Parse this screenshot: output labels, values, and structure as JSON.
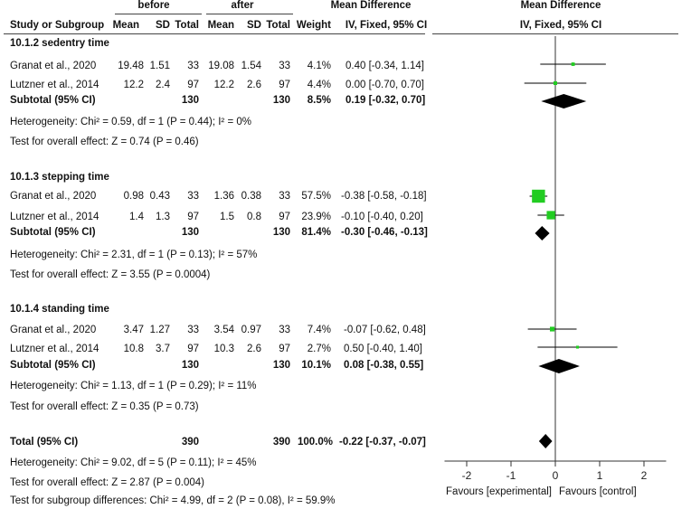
{
  "header": {
    "group_before": "before",
    "group_after": "after",
    "md_title_left": "Mean Difference",
    "md_sub_left": "IV, Fixed, 95% CI",
    "md_title_right": "Mean Difference",
    "md_sub_right": "IV, Fixed, 95% CI",
    "columns": {
      "study": "Study or Subgroup",
      "mean1": "Mean",
      "sd1": "SD",
      "total1": "Total",
      "mean2": "Mean",
      "sd2": "SD",
      "total2": "Total",
      "weight": "Weight"
    }
  },
  "subgroups": [
    {
      "title": "10.1.2 sedentry time",
      "studies": [
        {
          "name": "Granat et al., 2020",
          "mean1": "19.48",
          "sd1": "1.51",
          "total1": "33",
          "mean2": "19.08",
          "sd2": "1.54",
          "total2": "33",
          "weight": "4.1%",
          "ci": "0.40 [-0.34, 1.14]"
        },
        {
          "name": "Lutzner et al., 2014",
          "mean1": "12.2",
          "sd1": "2.4",
          "total1": "97",
          "mean2": "12.2",
          "sd2": "2.6",
          "total2": "97",
          "weight": "4.4%",
          "ci": "0.00 [-0.70, 0.70]"
        }
      ],
      "subtotal": {
        "label": "Subtotal (95% CI)",
        "total1": "130",
        "total2": "130",
        "weight": "8.5%",
        "ci": "0.19 [-0.32, 0.70]"
      },
      "heterogeneity": "Heterogeneity: Chi² = 0.59, df = 1 (P = 0.44); I² = 0%",
      "overall": "Test for overall effect: Z = 0.74 (P = 0.46)"
    },
    {
      "title": "10.1.3 stepping time",
      "studies": [
        {
          "name": "Granat et al., 2020",
          "mean1": "0.98",
          "sd1": "0.43",
          "total1": "33",
          "mean2": "1.36",
          "sd2": "0.38",
          "total2": "33",
          "weight": "57.5%",
          "ci": "-0.38 [-0.58, -0.18]"
        },
        {
          "name": "Lutzner et al., 2014",
          "mean1": "1.4",
          "sd1": "1.3",
          "total1": "97",
          "mean2": "1.5",
          "sd2": "0.8",
          "total2": "97",
          "weight": "23.9%",
          "ci": "-0.10 [-0.40, 0.20]"
        }
      ],
      "subtotal": {
        "label": "Subtotal (95% CI)",
        "total1": "130",
        "total2": "130",
        "weight": "81.4%",
        "ci": "-0.30 [-0.46, -0.13]"
      },
      "heterogeneity": "Heterogeneity: Chi² = 2.31, df = 1 (P = 0.13); I² = 57%",
      "overall": "Test for overall effect: Z = 3.55 (P = 0.0004)"
    },
    {
      "title": "10.1.4 standing time",
      "studies": [
        {
          "name": "Granat et al., 2020",
          "mean1": "3.47",
          "sd1": "1.27",
          "total1": "33",
          "mean2": "3.54",
          "sd2": "0.97",
          "total2": "33",
          "weight": "7.4%",
          "ci": "-0.07 [-0.62, 0.48]"
        },
        {
          "name": "Lutzner et al., 2014",
          "mean1": "10.8",
          "sd1": "3.7",
          "total1": "97",
          "mean2": "10.3",
          "sd2": "2.6",
          "total2": "97",
          "weight": "2.7%",
          "ci": "0.50 [-0.40, 1.40]"
        }
      ],
      "subtotal": {
        "label": "Subtotal (95% CI)",
        "total1": "130",
        "total2": "130",
        "weight": "10.1%",
        "ci": "0.08 [-0.38, 0.55]"
      },
      "heterogeneity": "Heterogeneity: Chi² = 1.13, df = 1 (P = 0.29); I² = 11%",
      "overall": "Test for overall effect: Z = 0.35 (P = 0.73)"
    }
  ],
  "total": {
    "label": "Total (95% CI)",
    "total1": "390",
    "total2": "390",
    "weight": "100.0%",
    "ci": "-0.22 [-0.37, -0.07]",
    "heterogeneity": "Heterogeneity: Chi² = 9.02, df = 5 (P = 0.11); I² = 45%",
    "overall": "Test for overall effect: Z = 2.87 (P = 0.004)",
    "subgroup_diff": "Test for subgroup differences: Chi² = 4.99, df = 2 (P = 0.08), I² = 59.9%"
  },
  "axis_footer": {
    "favours_left": "Favours [experimental]",
    "favours_right": "Favours [control]"
  },
  "colors": {
    "study_marker": "#22cc22",
    "summary_diamond": "#000000",
    "ci_line": "#000000"
  },
  "chart_data": {
    "type": "forest",
    "xlim": [
      -2.5,
      2.5
    ],
    "x_ticks": [
      -2,
      -1,
      0,
      1,
      2
    ],
    "null_line": 0,
    "studies": [
      {
        "subgroup": "10.1.2 sedentry time",
        "name": "Granat et al., 2020",
        "md": 0.4,
        "lo": -0.34,
        "hi": 1.14,
        "weight": 4.1
      },
      {
        "subgroup": "10.1.2 sedentry time",
        "name": "Lutzner et al., 2014",
        "md": 0.0,
        "lo": -0.7,
        "hi": 0.7,
        "weight": 4.4
      },
      {
        "subgroup": "10.1.3 stepping time",
        "name": "Granat et al., 2020",
        "md": -0.38,
        "lo": -0.58,
        "hi": -0.18,
        "weight": 57.5
      },
      {
        "subgroup": "10.1.3 stepping time",
        "name": "Lutzner et al., 2014",
        "md": -0.1,
        "lo": -0.4,
        "hi": 0.2,
        "weight": 23.9
      },
      {
        "subgroup": "10.1.4 standing time",
        "name": "Granat et al., 2020",
        "md": -0.07,
        "lo": -0.62,
        "hi": 0.48,
        "weight": 7.4
      },
      {
        "subgroup": "10.1.4 standing time",
        "name": "Lutzner et al., 2014",
        "md": 0.5,
        "lo": -0.4,
        "hi": 1.4,
        "weight": 2.7
      }
    ],
    "summaries": [
      {
        "name": "10.1.2 sedentry time subtotal",
        "md": 0.19,
        "lo": -0.32,
        "hi": 0.7
      },
      {
        "name": "10.1.3 stepping time subtotal",
        "md": -0.3,
        "lo": -0.46,
        "hi": -0.13
      },
      {
        "name": "10.1.4 standing time subtotal",
        "md": 0.08,
        "lo": -0.38,
        "hi": 0.55
      },
      {
        "name": "Total",
        "md": -0.22,
        "lo": -0.37,
        "hi": -0.07
      }
    ]
  }
}
